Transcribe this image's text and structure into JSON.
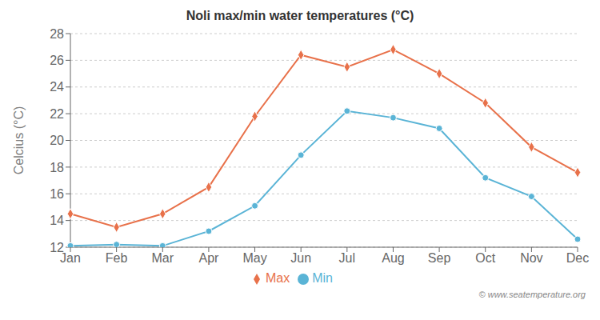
{
  "chart_data": {
    "type": "line",
    "title": "Noli max/min water temperatures (°C)",
    "y_label": "Celcius (°C)",
    "categories": [
      "Jan",
      "Feb",
      "Mar",
      "Apr",
      "May",
      "Jun",
      "Jul",
      "Aug",
      "Sep",
      "Oct",
      "Nov",
      "Dec"
    ],
    "series": [
      {
        "name": "Max",
        "color": "#e8714a",
        "marker": "diamond",
        "values": [
          14.5,
          13.5,
          14.5,
          16.5,
          21.8,
          26.4,
          25.5,
          26.8,
          25.0,
          22.8,
          19.5,
          17.6
        ]
      },
      {
        "name": "Min",
        "color": "#5ab4d6",
        "marker": "circle",
        "values": [
          12.1,
          12.2,
          12.1,
          13.2,
          15.1,
          18.9,
          22.2,
          21.7,
          20.9,
          17.2,
          15.8,
          12.6
        ]
      }
    ],
    "ylim": [
      12,
      28
    ],
    "yticks": [
      12,
      14,
      16,
      18,
      20,
      22,
      24,
      26,
      28
    ],
    "grid": true,
    "legend": "bottom",
    "annotations": [
      "© www.seatemperature.org"
    ]
  }
}
